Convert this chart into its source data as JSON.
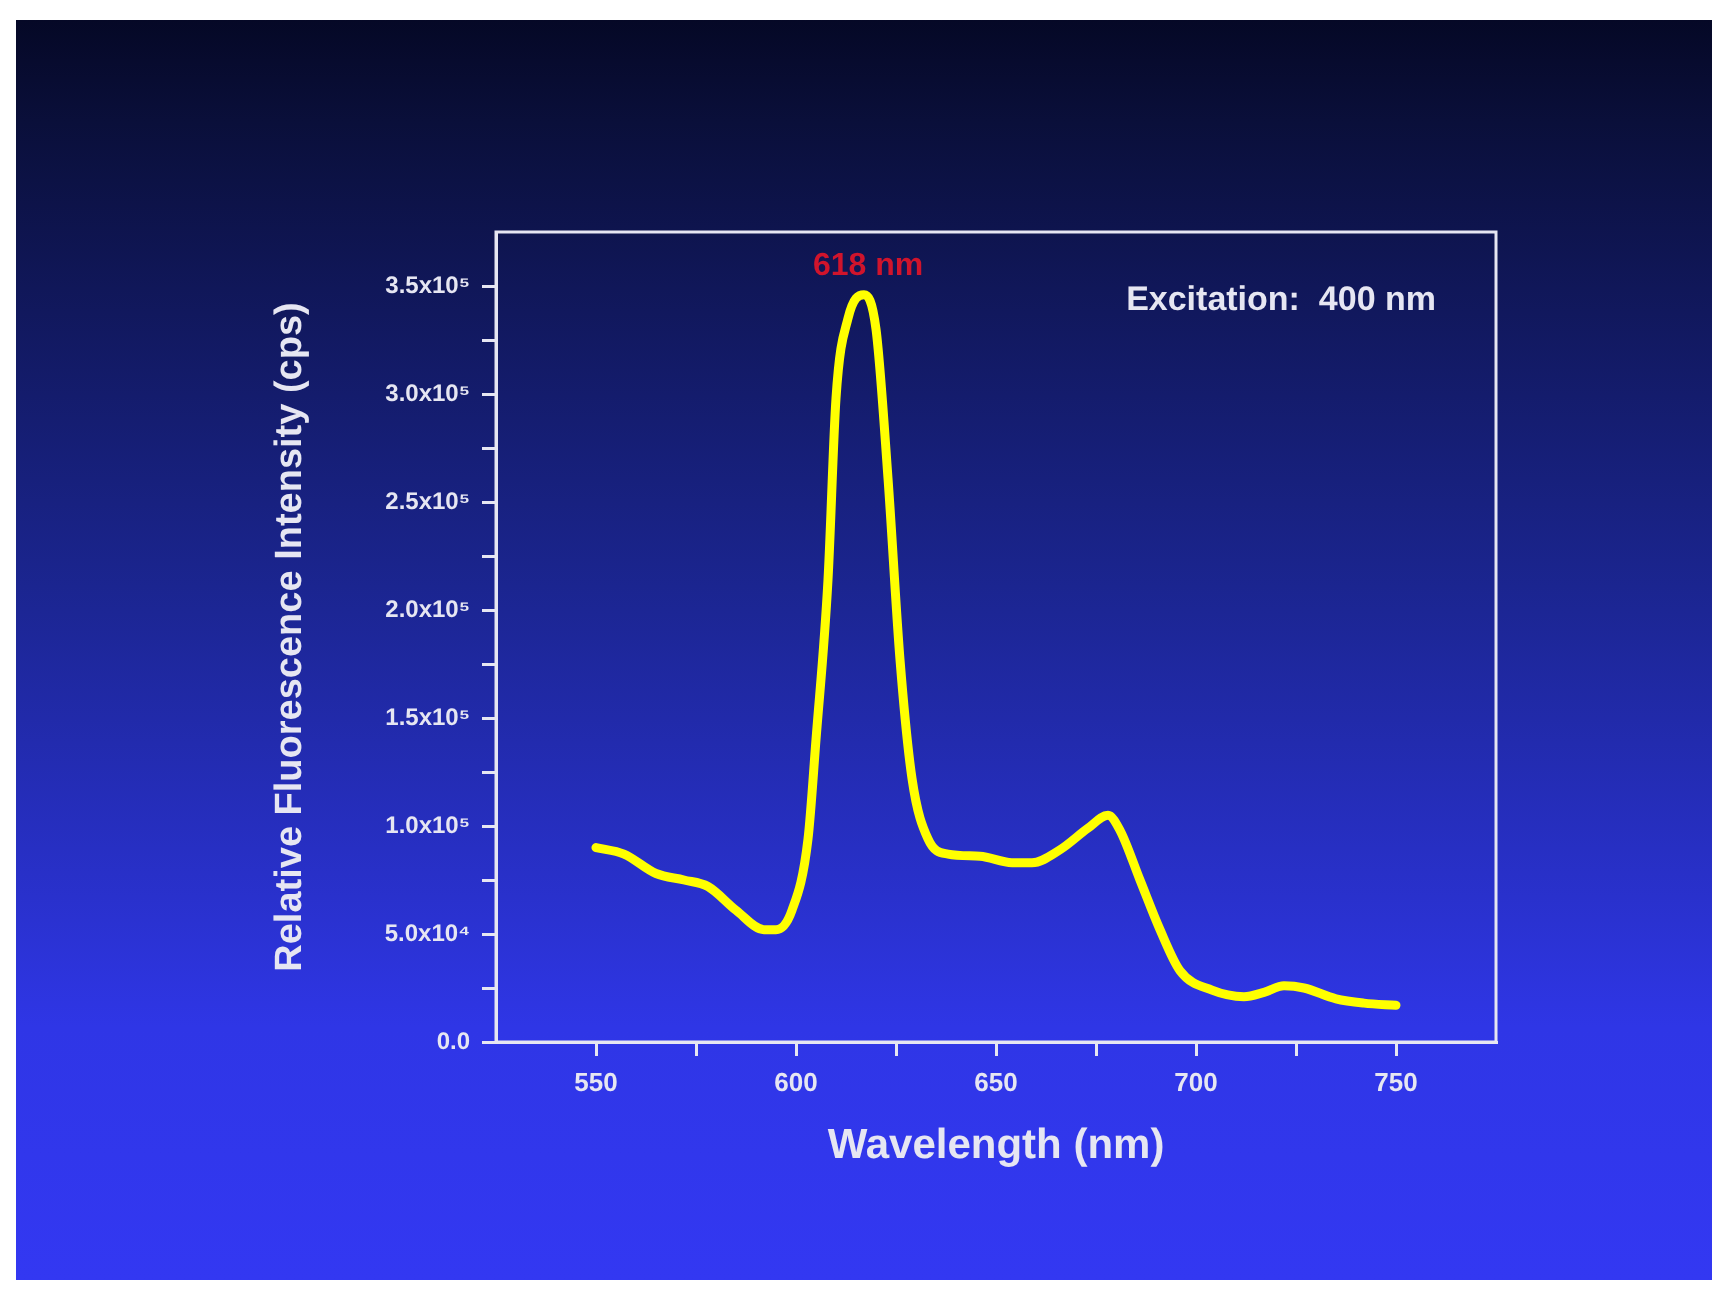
{
  "chart_data": {
    "type": "line",
    "xlabel": "Wavelength (nm)",
    "ylabel": "Relative Fluorescence Intensity (cps)",
    "x": [
      550,
      557,
      565,
      572,
      578,
      585,
      592,
      595,
      599,
      603,
      605,
      608,
      610,
      613,
      617,
      620,
      623,
      626,
      629,
      633,
      638,
      646,
      654,
      659,
      666,
      673,
      678,
      681,
      686,
      691,
      696,
      704,
      712,
      717,
      722,
      727,
      735,
      742,
      750
    ],
    "series": [
      {
        "color": "#ffff00",
        "values": [
          90000,
          87000,
          78000,
          75000,
          72000,
          61000,
          52000,
          52000,
          61000,
          94000,
          140000,
          214000,
          298000,
          335000,
          346000,
          330000,
          261000,
          177000,
          122000,
          94000,
          87000,
          86000,
          83000,
          83000,
          89000,
          99000,
          105000,
          98000,
          75000,
          52000,
          33000,
          24000,
          21000,
          23000,
          26000,
          25000,
          20000,
          18000,
          17000
        ]
      }
    ],
    "xlim": [
      525,
      775
    ],
    "xticks": [
      550,
      {
        "value": 575,
        "label": null
      },
      600,
      {
        "value": 625,
        "label": null
      },
      650,
      {
        "value": 675,
        "label": null
      },
      700,
      {
        "value": 725,
        "label": null
      },
      750
    ],
    "ylim": [
      0,
      375000
    ],
    "yticks": [
      {
        "value": 0,
        "label": "0.0"
      },
      {
        "value": 25000,
        "label": null
      },
      {
        "value": 50000,
        "label": "5.0x10⁴"
      },
      {
        "value": 75000,
        "label": null
      },
      {
        "value": 100000,
        "label": "1.0x10⁵"
      },
      {
        "value": 125000,
        "label": null
      },
      {
        "value": 150000,
        "label": "1.5x10⁵"
      },
      {
        "value": 175000,
        "label": null
      },
      {
        "value": 200000,
        "label": "2.0x10⁵"
      },
      {
        "value": 225000,
        "label": null
      },
      {
        "value": 250000,
        "label": "2.5x10⁵"
      },
      {
        "value": 275000,
        "label": null
      },
      {
        "value": 300000,
        "label": "3.0x10⁵"
      },
      {
        "value": 325000,
        "label": null
      },
      {
        "value": 350000,
        "label": "3.5x10⁵"
      }
    ],
    "annotations": [
      {
        "text": "618 nm",
        "x": 618,
        "y": 346000
      },
      "Excitation:  400 nm"
    ],
    "grid": false,
    "legend": false,
    "marker": "none",
    "line_style": "solid"
  }
}
